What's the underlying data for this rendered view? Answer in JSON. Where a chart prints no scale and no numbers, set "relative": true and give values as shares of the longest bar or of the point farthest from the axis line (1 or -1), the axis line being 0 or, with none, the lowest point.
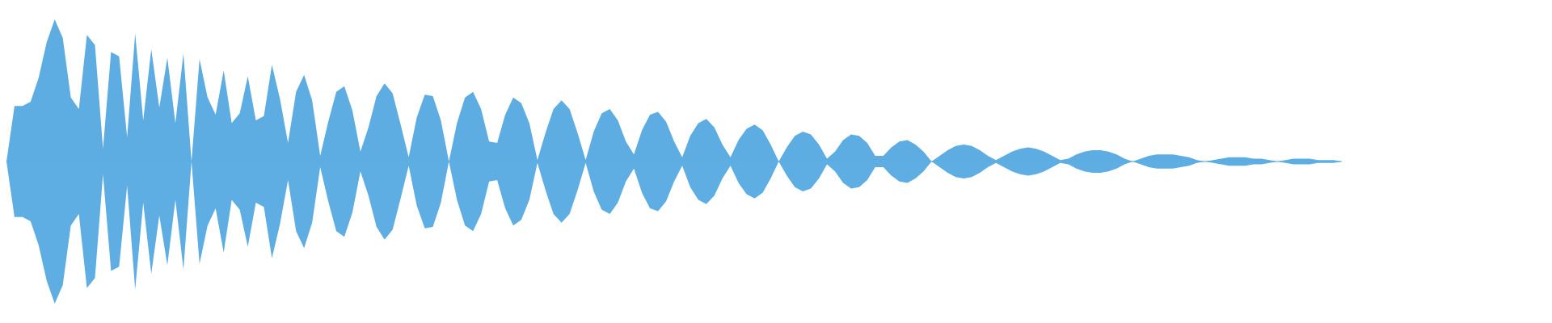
{
  "chart_data": {
    "type": "area",
    "relative": true,
    "categories": [
      null,
      null,
      null,
      null,
      null,
      null,
      null,
      null,
      null,
      null,
      null,
      null,
      null,
      null,
      null,
      null,
      null,
      null,
      null,
      null,
      null,
      null,
      null,
      null,
      null,
      null,
      null,
      null,
      null,
      null,
      null,
      null,
      null,
      null,
      null,
      null,
      null,
      null,
      null,
      null,
      null,
      null,
      null,
      null,
      null,
      null,
      null,
      null,
      null,
      null,
      null,
      null,
      null,
      null,
      null,
      null,
      null,
      null,
      null,
      null,
      null,
      null,
      null,
      null,
      null,
      null,
      null,
      null,
      null,
      null,
      null,
      null,
      null,
      null,
      null,
      null,
      null,
      null,
      null,
      null,
      null,
      null,
      null,
      null,
      null,
      null,
      null,
      null,
      null,
      null,
      null,
      null,
      null,
      null,
      null,
      null,
      null,
      null,
      null,
      null,
      null,
      null,
      null,
      null,
      null,
      null,
      null,
      null,
      null,
      null,
      null,
      null,
      null,
      null,
      null,
      null,
      null,
      null,
      null,
      null,
      null,
      null,
      null,
      null,
      null,
      null,
      null,
      null,
      null,
      null,
      null,
      null,
      null,
      null,
      null,
      null,
      null,
      null,
      null,
      null,
      null,
      null,
      null,
      null,
      null,
      null,
      null,
      null,
      null,
      null,
      null,
      null,
      null,
      null,
      null,
      null,
      null,
      null,
      null,
      null,
      null,
      null,
      null,
      null,
      null,
      null,
      null
    ],
    "series": [
      {
        "color": "#5dade2",
        "values": [
          0,
          0.39,
          0.39,
          0.42,
          0.59,
          0.84,
          1,
          0.87,
          0.45,
          0.37,
          0.89,
          0.82,
          0.09,
          0.77,
          0.74,
          0.17,
          0.9,
          0.29,
          0.79,
          0.38,
          0.73,
          0.27,
          0.76,
          0,
          0.72,
          0.45,
          0.33,
          0.64,
          0.27,
          0.34,
          0.6,
          0.29,
          0.32,
          0.68,
          0.44,
          0.13,
          0.49,
          0.61,
          0.43,
          0.04,
          0.28,
          0.49,
          0.53,
          0.36,
          0.07,
          0.24,
          0.46,
          0.55,
          0.48,
          0.26,
          0.03,
          0.31,
          0.47,
          0.46,
          0.29,
          0,
          0.27,
          0.45,
          0.49,
          0.37,
          0.14,
          0.13,
          0.33,
          0.45,
          0.41,
          0.27,
          0.01,
          0.2,
          0.37,
          0.43,
          0.37,
          0.2,
          0.01,
          0.21,
          0.34,
          0.37,
          0.29,
          0.14,
          0.05,
          0.22,
          0.33,
          0.35,
          0.28,
          0.14,
          0.03,
          0.18,
          0.27,
          0.3,
          0.24,
          0.12,
          0.03,
          0.15,
          0.23,
          0.26,
          0.22,
          0.12,
          0,
          0.1,
          0.18,
          0.21,
          0.19,
          0.12,
          0.02,
          0.07,
          0.15,
          0.19,
          0.18,
          0.13,
          0.04,
          0.04,
          0.1,
          0.14,
          0.15,
          0.12,
          0.07,
          0,
          0.04,
          0.08,
          0.11,
          0.12,
          0.11,
          0.08,
          0.04,
          0.01,
          0.04,
          0.07,
          0.09,
          0.1,
          0.09,
          0.07,
          0.04,
          0.01,
          0.02,
          0.05,
          0.07,
          0.08,
          0.08,
          0.07,
          0.05,
          0.02,
          0,
          0.02,
          0.04,
          0.05,
          0.05,
          0.05,
          0.04,
          0.03,
          0.01,
          0,
          0.01,
          0.02,
          0.03,
          0.03,
          0.03,
          0.02,
          0.02,
          0.01,
          0,
          0.01,
          0.02,
          0.02,
          0.02,
          0.01,
          0.01,
          0.01,
          0
        ]
      },
      {
        "color": "#5eaee3",
        "values": [
          0,
          -0.39,
          -0.39,
          -0.42,
          -0.59,
          -0.84,
          -1,
          -0.87,
          -0.45,
          -0.37,
          -0.89,
          -0.82,
          -0.09,
          -0.77,
          -0.74,
          -0.17,
          -0.9,
          -0.29,
          -0.79,
          -0.38,
          -0.73,
          -0.27,
          -0.76,
          0,
          -0.72,
          -0.45,
          -0.33,
          -0.64,
          -0.27,
          -0.34,
          -0.6,
          -0.29,
          -0.32,
          -0.68,
          -0.44,
          -0.13,
          -0.49,
          -0.61,
          -0.43,
          -0.04,
          -0.28,
          -0.49,
          -0.53,
          -0.36,
          -0.07,
          -0.24,
          -0.46,
          -0.55,
          -0.48,
          -0.26,
          -0.03,
          -0.31,
          -0.47,
          -0.46,
          -0.29,
          0,
          -0.27,
          -0.45,
          -0.49,
          -0.37,
          -0.14,
          -0.13,
          -0.33,
          -0.45,
          -0.41,
          -0.27,
          -0.01,
          -0.2,
          -0.37,
          -0.43,
          -0.37,
          -0.2,
          -0.01,
          -0.21,
          -0.34,
          -0.37,
          -0.29,
          -0.14,
          -0.05,
          -0.22,
          -0.33,
          -0.35,
          -0.28,
          -0.14,
          -0.03,
          -0.18,
          -0.27,
          -0.3,
          -0.24,
          -0.12,
          -0.03,
          -0.15,
          -0.23,
          -0.26,
          -0.22,
          -0.12,
          0,
          -0.1,
          -0.18,
          -0.21,
          -0.19,
          -0.12,
          -0.02,
          -0.07,
          -0.15,
          -0.19,
          -0.18,
          -0.13,
          -0.04,
          -0.04,
          -0.1,
          -0.14,
          -0.15,
          -0.12,
          -0.07,
          0,
          -0.04,
          -0.08,
          -0.11,
          -0.12,
          -0.11,
          -0.08,
          -0.04,
          -0.01,
          -0.04,
          -0.07,
          -0.09,
          -0.1,
          -0.09,
          -0.07,
          -0.04,
          -0.01,
          -0.02,
          -0.05,
          -0.07,
          -0.08,
          -0.08,
          -0.07,
          -0.05,
          -0.02,
          0,
          -0.02,
          -0.04,
          -0.05,
          -0.05,
          -0.05,
          -0.04,
          -0.03,
          -0.01,
          0,
          -0.01,
          -0.02,
          -0.03,
          -0.03,
          -0.03,
          -0.02,
          -0.02,
          -0.01,
          0,
          -0.01,
          -0.02,
          -0.02,
          -0.02,
          -0.01,
          -0.01,
          -0.01,
          0
        ]
      }
    ]
  }
}
